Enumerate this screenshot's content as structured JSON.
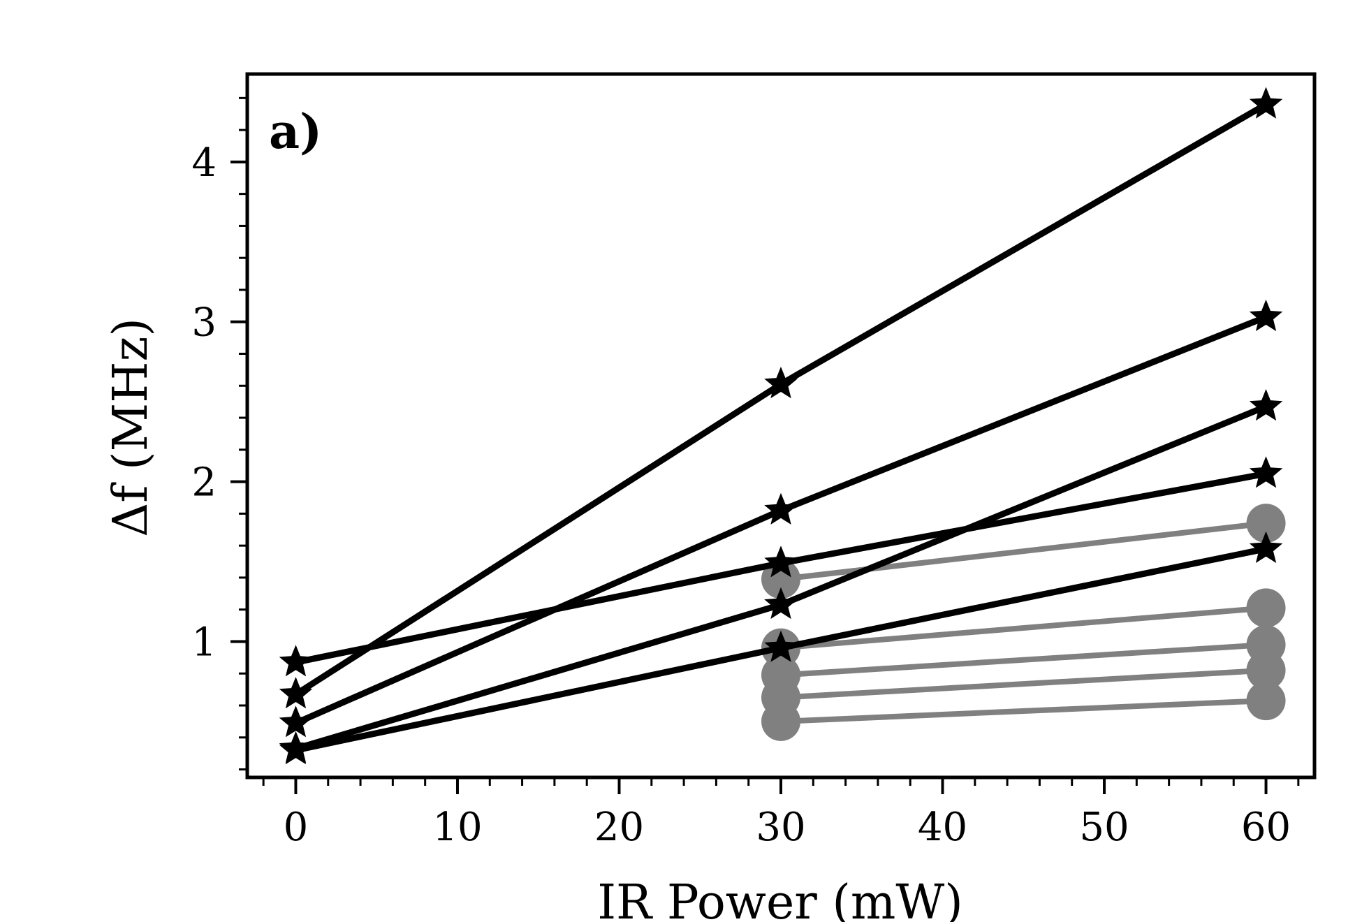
{
  "chart_data": {
    "type": "line",
    "panel_label": "a)",
    "xlabel": "IR Power (mW)",
    "ylabel": "Δf (MHz)",
    "xlim": [
      -3,
      63
    ],
    "ylim": [
      0.15,
      4.55
    ],
    "x_ticks": [
      0,
      10,
      20,
      30,
      40,
      50,
      60
    ],
    "y_ticks": [
      1,
      2,
      3,
      4
    ],
    "x_minor_step": 2,
    "y_minor_step": 0.2,
    "grid": false,
    "colors": {
      "star_series": "#000000",
      "circle_series": "#808080"
    },
    "series": [
      {
        "marker": "star",
        "color": "#000000",
        "x": [
          0,
          30,
          60
        ],
        "y": [
          0.67,
          2.61,
          4.36
        ]
      },
      {
        "marker": "star",
        "color": "#000000",
        "x": [
          0,
          30,
          60
        ],
        "y": [
          0.49,
          1.82,
          3.03
        ]
      },
      {
        "marker": "star",
        "color": "#000000",
        "x": [
          0,
          30,
          60
        ],
        "y": [
          0.33,
          1.23,
          2.47
        ]
      },
      {
        "marker": "star",
        "color": "#000000",
        "x": [
          0,
          30,
          60
        ],
        "y": [
          0.87,
          1.49,
          2.05
        ]
      },
      {
        "marker": "star",
        "color": "#000000",
        "x": [
          0,
          30,
          60
        ],
        "y": [
          0.32,
          0.96,
          1.58
        ]
      },
      {
        "marker": "circle",
        "color": "#808080",
        "x": [
          30,
          60
        ],
        "y": [
          1.39,
          1.74
        ]
      },
      {
        "marker": "circle",
        "color": "#808080",
        "x": [
          30,
          60
        ],
        "y": [
          0.96,
          1.21
        ]
      },
      {
        "marker": "circle",
        "color": "#808080",
        "x": [
          30,
          60
        ],
        "y": [
          0.79,
          0.98
        ]
      },
      {
        "marker": "circle",
        "color": "#808080",
        "x": [
          30,
          60
        ],
        "y": [
          0.65,
          0.82
        ]
      },
      {
        "marker": "circle",
        "color": "#808080",
        "x": [
          30,
          60
        ],
        "y": [
          0.5,
          0.63
        ]
      }
    ]
  }
}
